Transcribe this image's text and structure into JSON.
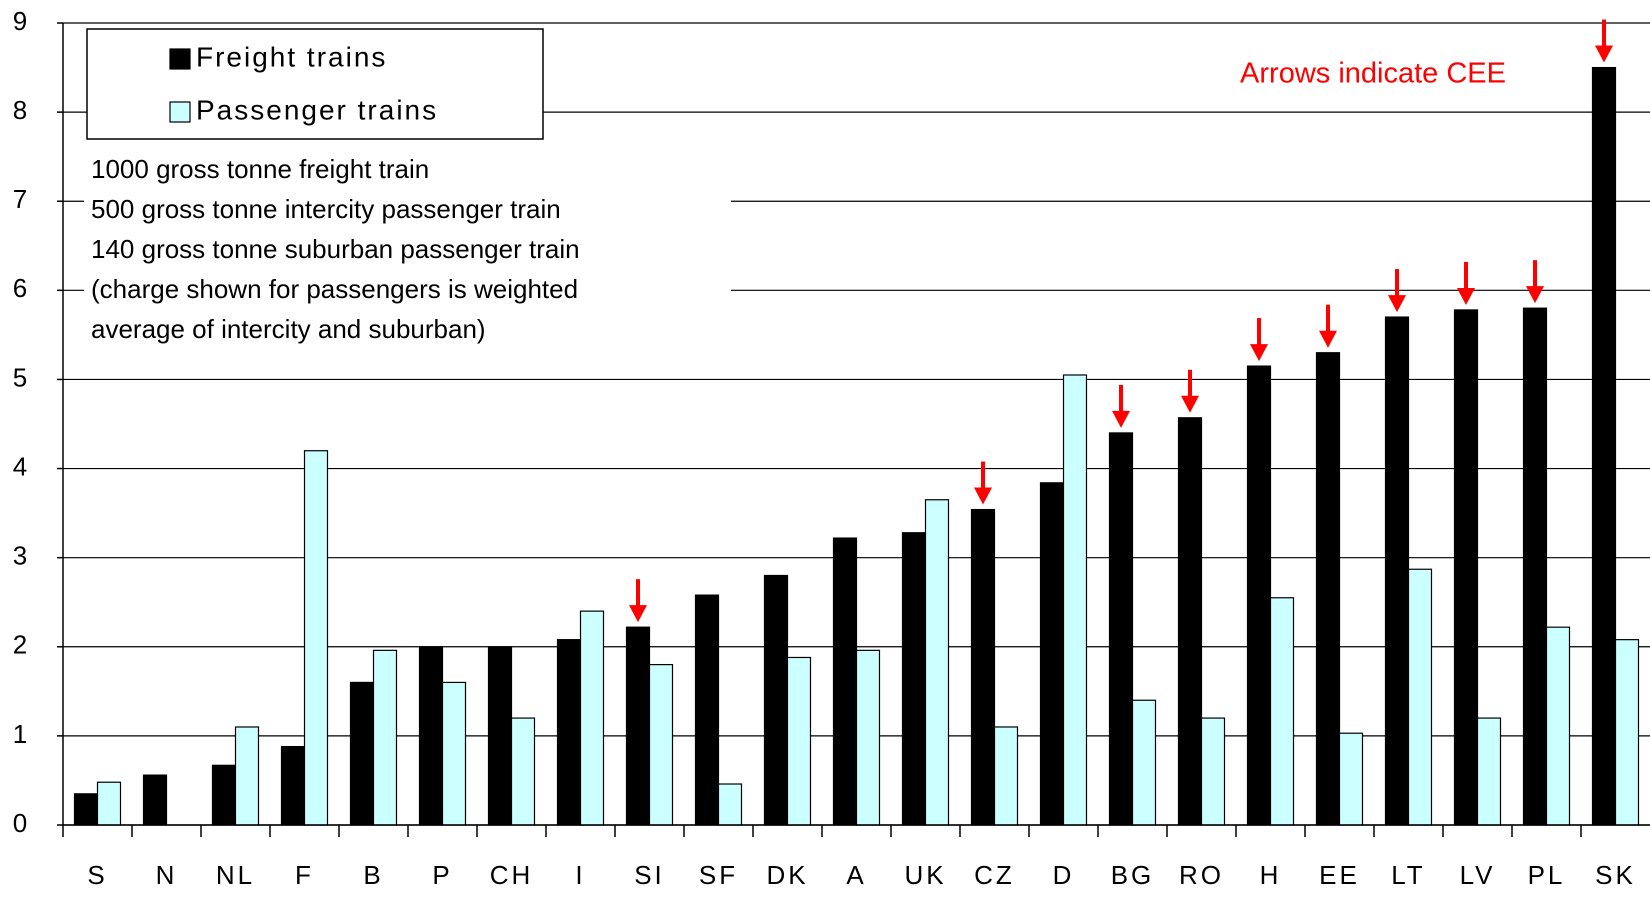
{
  "chart_data": {
    "type": "bar",
    "categories": [
      "S",
      "N",
      "NL",
      "F",
      "B",
      "P",
      "CH",
      "I",
      "SI",
      "SF",
      "DK",
      "A",
      "UK",
      "CZ",
      "D",
      "BG",
      "RO",
      "H",
      "EE",
      "LT",
      "LV",
      "PL",
      "SK"
    ],
    "series": [
      {
        "name": "Freight trains",
        "color": "#000000",
        "values": [
          0.35,
          0.56,
          0.67,
          0.88,
          1.6,
          2.0,
          2.0,
          2.08,
          2.22,
          2.58,
          2.8,
          3.22,
          3.28,
          3.54,
          3.84,
          4.4,
          4.57,
          5.15,
          5.3,
          5.7,
          5.78,
          5.8,
          8.5
        ]
      },
      {
        "name": "Passenger trains",
        "color": "#ccffff",
        "values": [
          0.48,
          null,
          1.1,
          4.2,
          1.96,
          1.6,
          1.2,
          2.4,
          1.8,
          0.46,
          1.88,
          1.96,
          3.65,
          1.1,
          5.05,
          1.4,
          1.2,
          2.55,
          1.03,
          2.87,
          1.2,
          2.22,
          2.08
        ]
      }
    ],
    "arrows": [
      false,
      false,
      false,
      false,
      false,
      false,
      false,
      false,
      true,
      false,
      false,
      false,
      false,
      true,
      false,
      true,
      true,
      true,
      true,
      true,
      true,
      true,
      true
    ],
    "arrow_color": "#ff0000",
    "annotation": "Arrows indicate CEE",
    "notes": [
      "1000 gross tonne freight train",
      "500 gross tonne intercity passenger train",
      "140 gross tonne suburban passenger train",
      "(charge shown for passengers is weighted",
      "average of intercity and suburban)"
    ],
    "ylim": [
      0,
      9
    ],
    "yticks": [
      0,
      1,
      2,
      3,
      4,
      5,
      6,
      7,
      8,
      9
    ],
    "grid": true,
    "legend": "upper left"
  }
}
